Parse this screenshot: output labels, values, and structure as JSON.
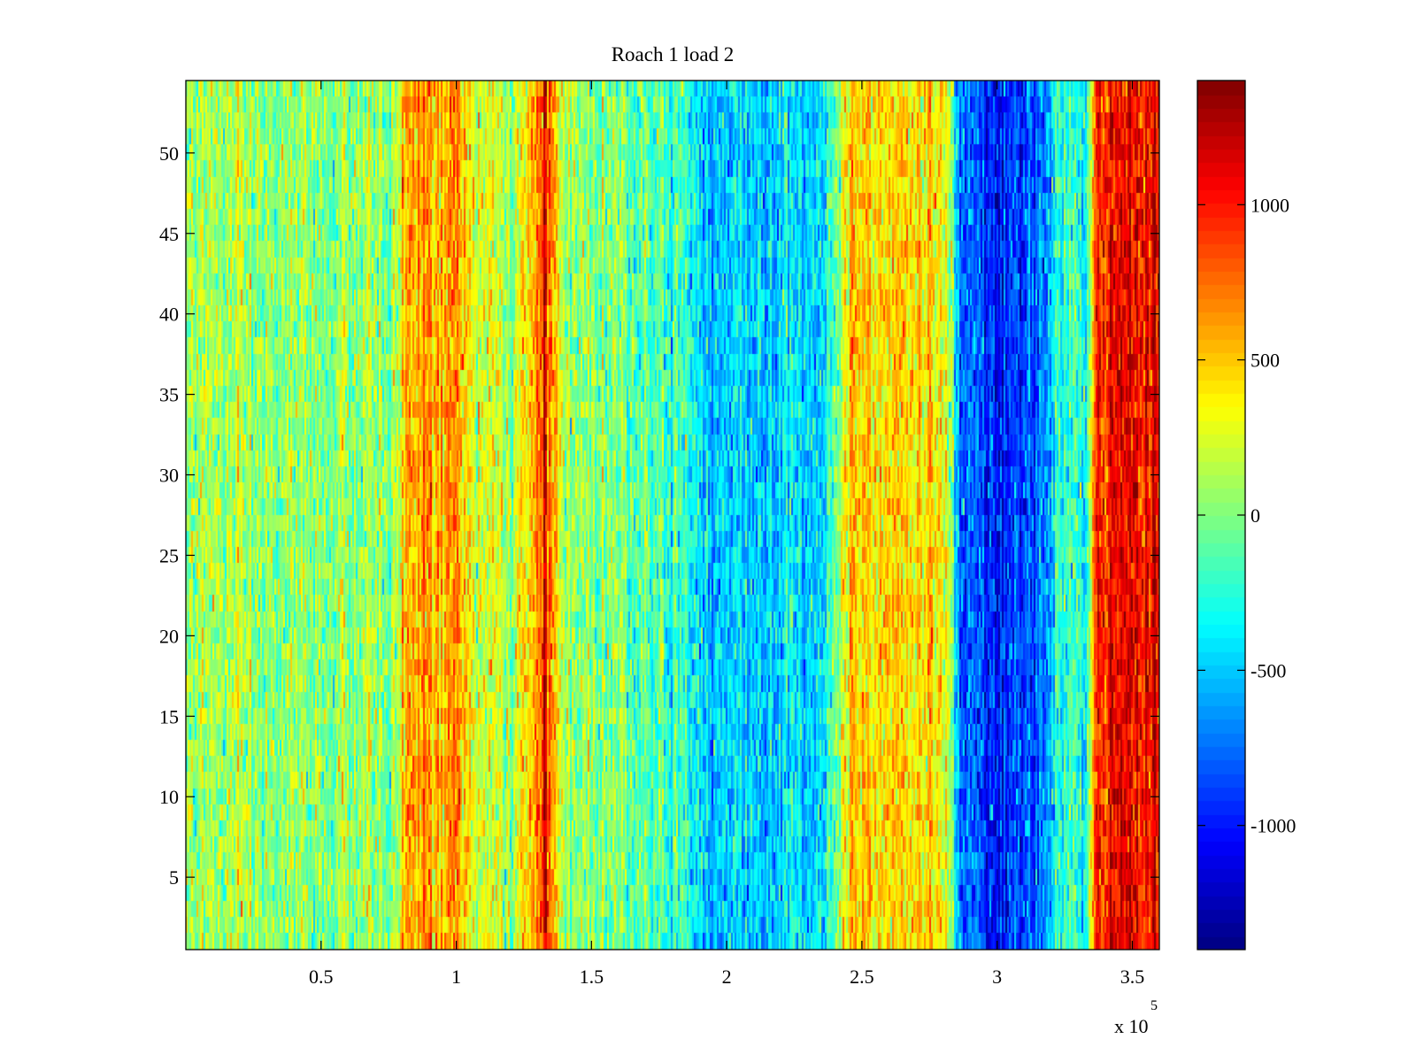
{
  "chart_data": {
    "type": "heatmap",
    "title": "Roach 1 load 2",
    "xlabel": "",
    "ylabel": "",
    "x_exponent_label": "x 10",
    "x_exponent": "5",
    "xlim": [
      0.0,
      3.6
    ],
    "ylim": [
      0.5,
      54.5
    ],
    "xticks": [
      0.5,
      1,
      1.5,
      2,
      2.5,
      3,
      3.5
    ],
    "xtick_labels": [
      "0.5",
      "1",
      "1.5",
      "2",
      "2.5",
      "3",
      "3.5"
    ],
    "yticks": [
      5,
      10,
      15,
      20,
      25,
      30,
      35,
      40,
      45,
      50
    ],
    "ytick_labels": [
      "5",
      "10",
      "15",
      "20",
      "25",
      "30",
      "35",
      "40",
      "45",
      "50"
    ],
    "rows": 54,
    "colormap": "jet",
    "colorbar": {
      "clim": [
        -1400,
        1400
      ],
      "ticks": [
        -1000,
        -500,
        0,
        500,
        1000
      ],
      "tick_labels": [
        "-1000",
        "-500",
        "0",
        "500",
        "1000"
      ]
    },
    "column_profile": {
      "description": "Approximate mean value per x-region (x in units of 10^5); each cell varies around the band mean.",
      "x": [
        0.0,
        0.3,
        0.78,
        0.82,
        0.95,
        1.0,
        1.06,
        1.2,
        1.28,
        1.33,
        1.36,
        1.4,
        1.6,
        1.85,
        1.94,
        2.1,
        2.35,
        2.42,
        2.46,
        2.6,
        2.75,
        2.82,
        2.86,
        3.0,
        3.15,
        3.22,
        3.3,
        3.33,
        3.37,
        3.45,
        3.6
      ],
      "values": [
        120,
        20,
        50,
        650,
        520,
        700,
        260,
        80,
        420,
        1050,
        520,
        80,
        0,
        -200,
        -500,
        -470,
        -430,
        80,
        560,
        470,
        430,
        300,
        -800,
        -1000,
        -850,
        -250,
        -220,
        -420,
        950,
        1070,
        1120
      ]
    }
  },
  "colors": {
    "axis": "#000000",
    "background": "#ffffff"
  }
}
